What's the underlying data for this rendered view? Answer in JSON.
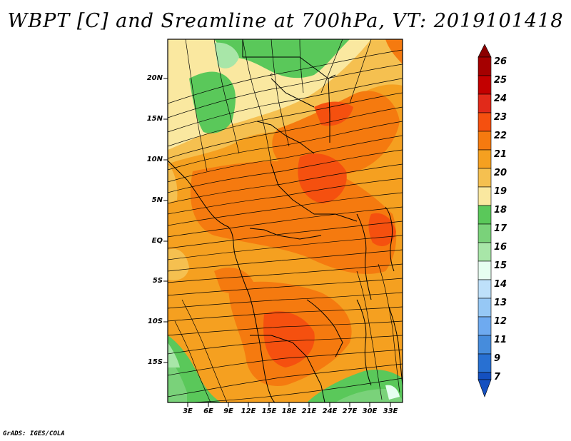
{
  "title": "WBPT [C] and Sreamline at 700hPa, VT: 2019101418",
  "credit": "GrADS: IGES/COLA",
  "y_axis": [
    "20N",
    "15N",
    "10N",
    "5N",
    "EQ",
    "5S",
    "10S",
    "15S"
  ],
  "x_axis": [
    "3E",
    "6E",
    "9E",
    "12E",
    "15E",
    "18E",
    "21E",
    "24E",
    "27E",
    "30E",
    "33E"
  ],
  "colorbar": {
    "labels": [
      "26",
      "25",
      "24",
      "23",
      "22",
      "21",
      "20",
      "19",
      "18",
      "17",
      "16",
      "15",
      "14",
      "13",
      "12",
      "11",
      "9",
      "7"
    ],
    "colors": [
      "#a50000",
      "#c30000",
      "#e12a1a",
      "#f5500f",
      "#f57a0f",
      "#f5a020",
      "#f5c050",
      "#fae8a0",
      "#5ac85a",
      "#7ad27a",
      "#a8e6a8",
      "#e6fff0",
      "#bee0fa",
      "#96c8f5",
      "#6eaaf0",
      "#468cdc",
      "#2870d2",
      "#1450c0"
    ]
  }
}
